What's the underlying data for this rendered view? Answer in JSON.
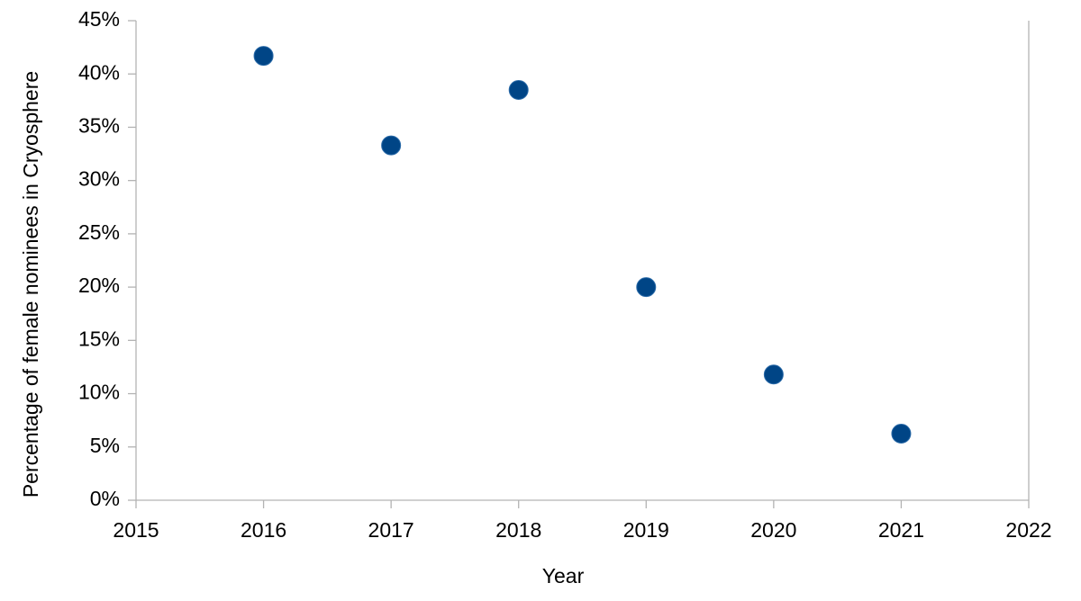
{
  "chart_data": {
    "type": "scatter",
    "x_label": "Year",
    "y_label": "Percentage of female nominees in Cryosphere",
    "x": [
      2016,
      2017,
      2018,
      2019,
      2020,
      2021
    ],
    "values": [
      41.7,
      33.3,
      38.5,
      20.0,
      11.8,
      6.25
    ],
    "color": "#004586",
    "xlim": [
      2015,
      2022
    ],
    "xticks": [
      2015,
      2016,
      2017,
      2018,
      2019,
      2020,
      2021,
      2022
    ],
    "ylim": [
      0,
      45
    ],
    "yticks": [
      {
        "value": 0,
        "label": "0%"
      },
      {
        "value": 5,
        "label": "5%"
      },
      {
        "value": 10,
        "label": "10%"
      },
      {
        "value": 15,
        "label": "15%"
      },
      {
        "value": 20,
        "label": "20%"
      },
      {
        "value": 25,
        "label": "25%"
      },
      {
        "value": 30,
        "label": "30%"
      },
      {
        "value": 35,
        "label": "35%"
      },
      {
        "value": 40,
        "label": "40%"
      },
      {
        "value": 45,
        "label": "45%"
      }
    ],
    "grid": false
  }
}
